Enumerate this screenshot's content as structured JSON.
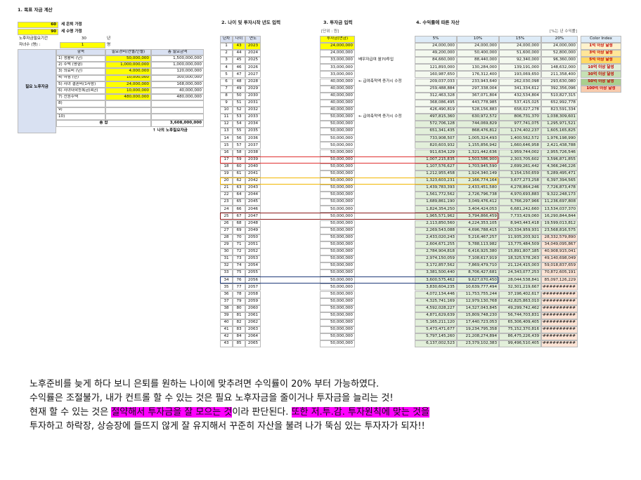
{
  "section1": {
    "title": "1. 목표 자금 계산",
    "retire_age": "60",
    "retire_label": "세 은퇴 가정",
    "life_age": "90",
    "life_label": "세 수명 가정",
    "period_label": "노후자금필요기간",
    "period": "30",
    "period_unit": "년",
    "children_label": "자녀수 (명) :",
    "children": "1",
    "children_unit": "명",
    "side_label": "필요 노후자금",
    "table": {
      "headers": [
        "항목",
        "필요경비(연별/인별)",
        "총 필요금액"
      ],
      "rows": [
        [
          "1) 생활비 (년)",
          "50,000,000",
          "1,500,000,000"
        ],
        [
          "2) 주택 (평형)",
          "1,000,000,000",
          "1,000,000,000"
        ],
        [
          "3) 의료비 (년)",
          "4,000,000",
          "120,000,000"
        ],
        [
          "4) 여행 (년)",
          "10,000,000",
          "300,000,000"
        ],
        [
          "5) 자녀 결혼비(1사람)",
          "24,000,000",
          "168,000,000"
        ],
        [
          "6) 자녀대학등록금(4년)",
          "10,000,000",
          "40,000,000"
        ],
        [
          "7) 전원주택",
          "480,000,000",
          "480,000,000"
        ],
        [
          "8)",
          null,
          null
        ],
        [
          "9)",
          null,
          null
        ],
        [
          "10)",
          null,
          null
        ]
      ],
      "total_label": "총 합",
      "total": "3,608,000,000"
    },
    "note": "↑ 나의 노후필요자금"
  },
  "section2": {
    "title": "2. 나이 및 투자시작 년도 입력",
    "headers": [
      "년차",
      "나이",
      "연도"
    ],
    "rows": [
      [
        1,
        43,
        2023
      ],
      [
        2,
        44,
        2024
      ],
      [
        3,
        45,
        2025
      ],
      [
        4,
        46,
        2026
      ],
      [
        5,
        47,
        2027
      ],
      [
        6,
        48,
        2028
      ],
      [
        7,
        49,
        2029
      ],
      [
        8,
        50,
        2030
      ],
      [
        9,
        51,
        2031
      ],
      [
        10,
        52,
        2032
      ],
      [
        11,
        53,
        2033
      ],
      [
        12,
        54,
        2034
      ],
      [
        13,
        55,
        2035
      ],
      [
        14,
        56,
        2036
      ],
      [
        15,
        57,
        2037
      ],
      [
        16,
        58,
        2038
      ],
      [
        17,
        59,
        2039
      ],
      [
        18,
        60,
        2040
      ],
      [
        19,
        61,
        2041
      ],
      [
        20,
        62,
        2042
      ],
      [
        21,
        63,
        2043
      ],
      [
        22,
        64,
        2044
      ],
      [
        23,
        65,
        2045
      ],
      [
        24,
        66,
        2046
      ],
      [
        25,
        67,
        2047
      ],
      [
        26,
        68,
        2048
      ],
      [
        27,
        69,
        2049
      ],
      [
        28,
        70,
        2050
      ],
      [
        29,
        71,
        2051
      ],
      [
        30,
        72,
        2052
      ],
      [
        31,
        73,
        2053
      ],
      [
        32,
        74,
        2054
      ],
      [
        33,
        75,
        2055
      ],
      [
        34,
        76,
        2056
      ],
      [
        35,
        77,
        2057
      ],
      [
        36,
        78,
        2058
      ],
      [
        37,
        79,
        2059
      ],
      [
        38,
        80,
        2060
      ],
      [
        39,
        81,
        2061
      ],
      [
        40,
        82,
        2062
      ],
      [
        41,
        83,
        2063
      ],
      [
        42,
        84,
        2064
      ],
      [
        43,
        85,
        2065
      ]
    ]
  },
  "section3": {
    "title": "3. 투자금 입력",
    "unit": "[단위 : 원]",
    "header": "투자금(연금)",
    "values": [
      "24,000,000",
      "24,000,000",
      "33,000,000",
      "33,000,000",
      "33,000,000",
      "40,000,000",
      "40,000,000",
      "40,000,000",
      "40,000,000",
      "40,000,000",
      "50,000,000",
      "50,000,000",
      "50,000,000",
      "50,000,000",
      "50,000,000",
      "50,000,000",
      "50,000,000",
      "50,000,000",
      "50,000,000",
      "50,000,000",
      "50,000,000",
      "50,000,000",
      "50,000,000",
      "50,000,000",
      "50,000,000",
      "50,000,000",
      "50,000,000",
      "50,000,000",
      "50,000,000",
      "50,000,000",
      "50,000,000",
      "50,000,000",
      "50,000,000",
      "50,000,000",
      "50,000,000",
      "50,000,000",
      "50,000,000",
      "50,000,000",
      "50,000,000",
      "50,000,000",
      "50,000,000",
      "50,000,000",
      "50,000,000"
    ],
    "notes": [
      null,
      null,
      "배우자급여 월70투입",
      null,
      null,
      "← 급여축적액 증가시 수정",
      null,
      null,
      null,
      null,
      "← 급여축적액 증가시 수정"
    ]
  },
  "section4": {
    "title": "4. 수익률에 따른 자산",
    "unit_note": "[%는 년 수익률]",
    "headers": [
      "5%",
      "10%",
      "15%",
      "20%"
    ],
    "rows": [
      [
        "24,000,000",
        "24,000,000",
        "24,000,000",
        "24,000,000"
      ],
      [
        "49,200,000",
        "50,400,000",
        "51,600,000",
        "52,800,000"
      ],
      [
        "84,660,000",
        "88,440,000",
        "92,340,000",
        "96,360,000"
      ],
      [
        "121,893,000",
        "130,284,000",
        "139,191,000",
        "148,632,000"
      ],
      [
        "160,987,650",
        "176,312,400",
        "193,069,650",
        "211,358,400"
      ],
      [
        "209,037,033",
        "233,943,640",
        "262,030,098",
        "293,630,080"
      ],
      [
        "259,488,884",
        "297,338,004",
        "341,334,612",
        "392,356,096"
      ],
      [
        "312,463,328",
        "367,071,804",
        "432,534,804",
        "510,827,315"
      ],
      [
        "368,086,495",
        "443,778,985",
        "537,415,025",
        "652,992,778"
      ],
      [
        "426,490,819",
        "528,156,883",
        "658,027,278",
        "823,591,334"
      ],
      [
        "497,815,360",
        "630,972,572",
        "806,731,370",
        "1,038,309,601"
      ],
      [
        "572,706,128",
        "744,069,829",
        "977,741,075",
        "1,295,971,521"
      ],
      [
        "651,341,435",
        "868,476,812",
        "1,174,402,237",
        "1,605,165,825"
      ],
      [
        "733,908,507",
        "1,005,324,493",
        "1,400,562,572",
        "1,976,198,990"
      ],
      [
        "820,603,932",
        "1,155,856,942",
        "1,660,646,958",
        "2,421,438,788"
      ],
      [
        "911,634,129",
        "1,321,442,636",
        "1,959,744,002",
        "2,955,726,546"
      ],
      [
        "1,007,215,835",
        "1,503,586,900",
        "2,303,705,602",
        "3,596,871,855"
      ],
      [
        "1,107,576,627",
        "1,703,945,590",
        "2,699,261,442",
        "4,366,246,226"
      ],
      [
        "1,212,955,458",
        "1,924,340,149",
        "3,154,150,659",
        "5,289,495,471"
      ],
      [
        "1,323,603,231",
        "2,166,774,164",
        "3,677,273,258",
        "6,397,394,565"
      ],
      [
        "1,439,783,393",
        "2,433,451,580",
        "4,278,864,246",
        "7,726,873,478"
      ],
      [
        "1,561,772,562",
        "2,726,796,738",
        "4,970,693,883",
        "9,322,248,173"
      ],
      [
        "1,689,861,190",
        "3,049,476,412",
        "5,766,297,966",
        "11,236,697,808"
      ],
      [
        "1,824,354,250",
        "3,404,424,053",
        "6,681,242,660",
        "13,534,037,370"
      ],
      [
        "1,965,571,962",
        "3,794,866,459",
        "7,733,429,060",
        "16,290,844,844"
      ],
      [
        "2,113,850,560",
        "4,224,353,105",
        "8,943,443,418",
        "19,599,013,812"
      ],
      [
        "2,269,543,088",
        "4,696,788,415",
        "10,334,959,931",
        "23,568,816,575"
      ],
      [
        "2,433,020,243",
        "5,216,467,257",
        "11,935,203,921",
        "28,332,579,890"
      ],
      [
        "2,604,671,255",
        "5,788,113,982",
        "13,775,484,509",
        "34,049,095,867"
      ],
      [
        "2,784,904,818",
        "6,416,925,380",
        "15,891,807,185",
        "40,908,915,041"
      ],
      [
        "2,974,150,059",
        "7,108,617,919",
        "18,325,578,263",
        "49,140,698,049"
      ],
      [
        "3,172,857,562",
        "7,869,479,710",
        "21,124,415,003",
        "59,018,837,659"
      ],
      [
        "3,381,500,440",
        "8,706,427,681",
        "24,343,077,253",
        "70,872,605,191"
      ],
      [
        "3,600,575,462",
        "9,627,070,450",
        "28,044,538,841",
        "85,097,126,229"
      ],
      [
        "3,830,604,235",
        "10,639,777,494",
        "32,301,219,667",
        "##############"
      ],
      [
        "4,072,134,446",
        "11,753,755,244",
        "37,196,402,617",
        "##############"
      ],
      [
        "4,325,741,169",
        "12,979,130,768",
        "42,825,863,010",
        "##############"
      ],
      [
        "4,592,028,227",
        "14,327,043,845",
        "49,299,742,462",
        "##############"
      ],
      [
        "4,871,629,639",
        "15,809,748,230",
        "56,744,703,831",
        "##############"
      ],
      [
        "5,165,211,120",
        "17,440,723,053",
        "65,306,409,405",
        "##############"
      ],
      [
        "5,473,471,677",
        "19,234,795,358",
        "75,152,370,816",
        "##############"
      ],
      [
        "5,797,145,260",
        "21,208,274,894",
        "86,475,226,439",
        "##############"
      ],
      [
        "6,137,002,523",
        "23,379,102,383",
        "99,496,510,405",
        "##############"
      ]
    ],
    "color_index": {
      "title": "Color Index",
      "items": [
        {
          "label": "1억 이상 달성",
          "color": "#fff2cc"
        },
        {
          "label": "3억 이상 달성",
          "color": "#ffe699"
        },
        {
          "label": "5억 이상 달성",
          "color": "#ffd966"
        },
        {
          "label": "10억 이상 달성",
          "color": "#e2efda"
        },
        {
          "label": "30억 이상 달성",
          "color": "#c6e0b4"
        },
        {
          "label": "50억 이상 달성",
          "color": "#a9d08e"
        },
        {
          "label": "100억 이상 달성",
          "color": "#f8cbad"
        }
      ]
    }
  },
  "comment": {
    "lines": [
      [
        {
          "text": "노후준비를 늦게 하다 보니 은퇴를 원하는 나이에 맞추려면 수익률이 20% 부터 가능하였다."
        }
      ],
      [
        {
          "text": "수익률은 조절불가,  내가 컨트롤  할 수 있는 것은 필요 노후자금을 줄이거나 투자금을 늘리는 것!"
        }
      ],
      [
        {
          "text": "현재 할 수 있는 것은 "
        },
        {
          "text": "절약해서 투자금을 잘 모으는 것",
          "highlight": "#ff00ff"
        },
        {
          "text": "이라 판단된다. "
        },
        {
          "text": "또한 저.투.감. 투자원칙에 맞는 것을",
          "highlight": "#ff00ff"
        }
      ],
      [
        {
          "text": "투자하고 하락장, 상승장에 들뜨지 않게 잘 유지해서 꾸준히 자산을 불려 나가 뚝심 있는 투자자가 되자!!"
        }
      ]
    ]
  }
}
